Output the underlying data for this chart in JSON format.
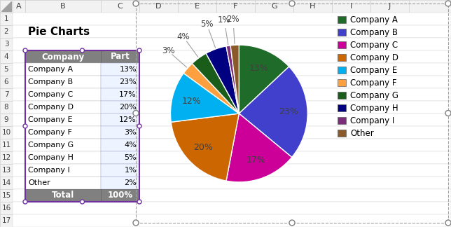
{
  "title": "Pie Charts",
  "companies": [
    "Company A",
    "Company B",
    "Company C",
    "Company D",
    "Company E",
    "Company F",
    "Company G",
    "Company H",
    "Company I",
    "Other"
  ],
  "values": [
    13,
    23,
    17,
    20,
    12,
    3,
    4,
    5,
    1,
    2
  ],
  "colors": [
    "#1F6B2A",
    "#4040CC",
    "#CC0099",
    "#CC6600",
    "#00B0F0",
    "#FFA040",
    "#1A5C1A",
    "#000080",
    "#7B2C7B",
    "#8B5A2B"
  ],
  "table_header_color": "#808080",
  "table_data_bg": "#EEF4FF",
  "table_data_bg2": "#FFFFFF",
  "bg_color": "#FFFFFF",
  "excel_bg": "#F2F2F2",
  "grid_color": "#D0D0D0",
  "col_header_bg": "#F2F2F2",
  "row_num_color": "#000000",
  "label_fontsize": 9,
  "legend_fontsize": 9,
  "col_labels": [
    "A",
    "B",
    "C",
    "D",
    "E",
    "F",
    "G",
    "H",
    "I",
    "J"
  ],
  "row_labels": [
    "1",
    "2",
    "3",
    "4",
    "5",
    "6",
    "7",
    "8",
    "9",
    "10",
    "11",
    "12",
    "13",
    "14",
    "15",
    "16",
    "17"
  ]
}
